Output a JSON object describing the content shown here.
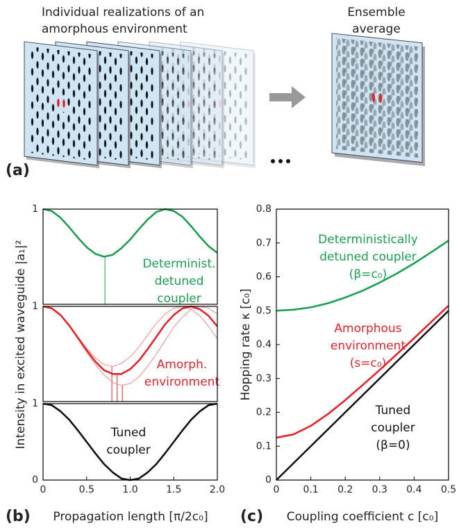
{
  "panel_a": {
    "label": "(a)",
    "left_title": [
      "Individual realizations of an",
      "amorphous environment"
    ],
    "right_title": [
      "Ensemble",
      "average"
    ]
  },
  "chart_data": [
    {
      "type": "line",
      "panel_label": "(b)",
      "x_label": "Propagation length [π/2c₀]",
      "y_label": "Intensity in excited waveguide |a₁|²",
      "x": [
        0,
        0.1,
        0.2,
        0.3,
        0.4,
        0.5,
        0.6,
        0.7,
        0.8,
        0.9,
        1.0,
        1.1,
        1.2,
        1.3,
        1.4,
        1.5,
        1.6,
        1.7,
        1.8,
        1.9,
        2.0
      ],
      "xlim": [
        0,
        2
      ],
      "xticks": [
        0,
        0.5,
        {
          "value": 1,
          "label": "1.0"
        },
        1.5,
        {
          "value": 2,
          "label": "2.0"
        }
      ],
      "subplots": [
        {
          "ylim": [
            0,
            1
          ],
          "yticks": [
            1
          ],
          "series": [
            {
              "color": "#1a9e4f",
              "values": [
                1,
                0.98,
                0.91,
                0.81,
                0.7,
                0.6,
                0.53,
                0.5,
                0.52,
                0.59,
                0.68,
                0.79,
                0.89,
                0.97,
                1,
                0.98,
                0.92,
                0.82,
                0.71,
                0.61,
                0.54
              ]
            }
          ],
          "markers": [
            {
              "x": 0.71,
              "y": 0.5
            }
          ],
          "annotation": [
            "Determinist.",
            "detuned",
            "coupler"
          ],
          "annotation_color": "#1a9e4f"
        },
        {
          "ylim": [
            0,
            1
          ],
          "yticks": [
            1
          ],
          "series": [
            {
              "color": "#f08a8a",
              "line_width": 1,
              "values": [
                1,
                0.98,
                0.91,
                0.8,
                0.66,
                0.52,
                0.39,
                0.28,
                0.2,
                0.17,
                0.19,
                0.26,
                0.37,
                0.5,
                0.64,
                0.78,
                0.89,
                0.97,
                1,
                0.98,
                0.92
              ]
            },
            {
              "color": "#f08a8a",
              "line_width": 1,
              "values": [
                1,
                0.98,
                0.91,
                0.8,
                0.68,
                0.56,
                0.46,
                0.39,
                0.37,
                0.4,
                0.47,
                0.57,
                0.7,
                0.82,
                0.92,
                0.98,
                1,
                0.97,
                0.9,
                0.79,
                0.66
              ]
            },
            {
              "color": "#e3242b",
              "values": [
                1,
                0.98,
                0.91,
                0.8,
                0.67,
                0.54,
                0.42,
                0.33,
                0.29,
                0.29,
                0.34,
                0.43,
                0.55,
                0.68,
                0.81,
                0.91,
                0.98,
                1,
                0.97,
                0.9,
                0.79
              ]
            }
          ],
          "markers": [
            {
              "x": 0.79,
              "y": 0.37
            },
            {
              "x": 0.85,
              "y": 0.29
            },
            {
              "x": 0.91,
              "y": 0.17
            }
          ],
          "annotation": [
            "Amorph.",
            "environment"
          ],
          "annotation_color": "#e3242b"
        },
        {
          "ylim": [
            0,
            1
          ],
          "yticks": [
            0,
            1
          ],
          "series": [
            {
              "color": "#111111",
              "values": [
                1,
                0.98,
                0.9,
                0.79,
                0.65,
                0.5,
                0.35,
                0.21,
                0.1,
                0.02,
                0,
                0.02,
                0.1,
                0.21,
                0.35,
                0.5,
                0.65,
                0.79,
                0.9,
                0.98,
                1
              ]
            }
          ],
          "markers": [],
          "annotation": [
            "Tuned",
            "coupler"
          ],
          "annotation_color": "#111111"
        }
      ]
    },
    {
      "type": "line",
      "panel_label": "(c)",
      "x_label": "Coupling coefficient c [c₀]",
      "y_label": "Hopping rate κ [c₀]",
      "x": [
        0,
        0.05,
        0.1,
        0.15,
        0.2,
        0.25,
        0.3,
        0.35,
        0.4,
        0.45,
        0.5
      ],
      "xlim": [
        0,
        0.5
      ],
      "ylim": [
        0,
        0.8
      ],
      "xticks": [
        0,
        0.1,
        0.2,
        0.3,
        0.4,
        0.5
      ],
      "yticks": [
        0,
        0.1,
        0.2,
        0.3,
        0.4,
        0.5,
        0.6,
        0.7,
        0.8
      ],
      "series": [
        {
          "color": "#1a9e4f",
          "values": [
            0.5,
            0.503,
            0.51,
            0.522,
            0.539,
            0.559,
            0.583,
            0.61,
            0.64,
            0.673,
            0.707
          ]
        },
        {
          "color": "#e3242b",
          "values": [
            0.125,
            0.135,
            0.16,
            0.195,
            0.236,
            0.28,
            0.325,
            0.372,
            0.419,
            0.467,
            0.515
          ]
        },
        {
          "color": "#111111",
          "values": [
            0,
            0.05,
            0.1,
            0.15,
            0.2,
            0.25,
            0.3,
            0.35,
            0.4,
            0.45,
            0.5
          ]
        }
      ],
      "annotations": [
        {
          "lines": [
            "Deterministically",
            "detuned coupler",
            "(β=c₀)"
          ],
          "color": "#1a9e4f"
        },
        {
          "lines": [
            "Amorphous",
            "environment",
            "(s=c₀)"
          ],
          "color": "#e3242b"
        },
        {
          "lines": [
            "Tuned",
            "coupler",
            "(β=0)"
          ],
          "color": "#111111"
        }
      ]
    }
  ]
}
